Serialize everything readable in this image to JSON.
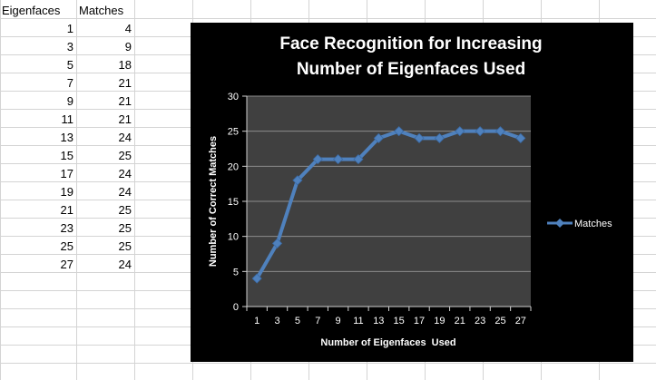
{
  "spreadsheet": {
    "headers": [
      "Eigenfaces",
      "Matches"
    ],
    "rows": [
      [
        "1",
        "4"
      ],
      [
        "3",
        "9"
      ],
      [
        "5",
        "18"
      ],
      [
        "7",
        "21"
      ],
      [
        "9",
        "21"
      ],
      [
        "11",
        "21"
      ],
      [
        "13",
        "24"
      ],
      [
        "15",
        "25"
      ],
      [
        "17",
        "24"
      ],
      [
        "19",
        "24"
      ],
      [
        "21",
        "25"
      ],
      [
        "23",
        "25"
      ],
      [
        "25",
        "25"
      ],
      [
        "27",
        "24"
      ]
    ]
  },
  "chart_data": {
    "type": "line",
    "title_line1": "Face Recognition for Increasing",
    "title_line2": "Number of Eigenfaces Used",
    "xlabel": "Number of Eigenfaces  Used",
    "ylabel": "Number of Correct Matches",
    "x": [
      1,
      3,
      5,
      7,
      9,
      11,
      13,
      15,
      17,
      19,
      21,
      23,
      25,
      27
    ],
    "series": [
      {
        "name": "Matches",
        "values": [
          4,
          9,
          18,
          21,
          21,
          21,
          24,
          25,
          24,
          24,
          25,
          25,
          25,
          24
        ]
      }
    ],
    "ylim": [
      0,
      30
    ],
    "yticks": [
      0,
      5,
      10,
      15,
      20,
      25,
      30
    ],
    "grid": "horizontal",
    "legend": "right",
    "colors": {
      "background": "#000000",
      "plot_area": "#404040",
      "gridline": "#8c8c8c",
      "series": "#4f81bd",
      "text": "#ffffff"
    }
  }
}
